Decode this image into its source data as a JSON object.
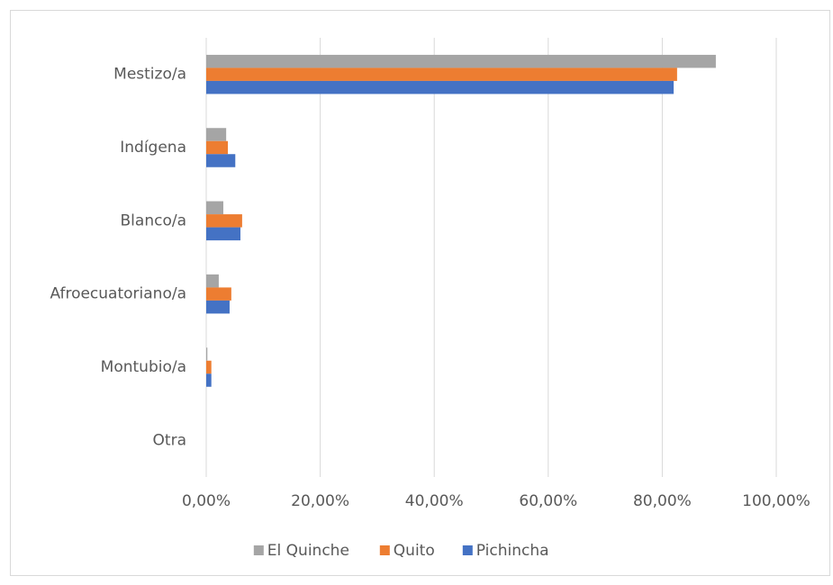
{
  "chart_data": {
    "type": "bar",
    "orientation": "horizontal",
    "categories": [
      "Mestizo/a",
      "Indígena",
      "Blanco/a",
      "Afroecuatoriano/a",
      "Montubio/a",
      "Otra"
    ],
    "series": [
      {
        "name": "El Quinche",
        "color": "#a5a5a5",
        "values": [
          89.4,
          3.5,
          3.0,
          2.2,
          0.2,
          0
        ]
      },
      {
        "name": "Quito",
        "color": "#ed7d31",
        "values": [
          82.6,
          3.8,
          6.3,
          4.4,
          0.9,
          0
        ]
      },
      {
        "name": "Pichincha",
        "color": "#4472c4",
        "values": [
          82.0,
          5.1,
          6.0,
          4.1,
          0.9,
          0
        ]
      }
    ],
    "xlim": [
      0,
      100
    ],
    "xticks": [
      {
        "value": 0,
        "label": "0,00%"
      },
      {
        "value": 20,
        "label": "20,00%"
      },
      {
        "value": 40,
        "label": "40,00%"
      },
      {
        "value": 60,
        "label": "60,00%"
      },
      {
        "value": 80,
        "label": "80,00%"
      },
      {
        "value": 100,
        "label": "100,00%"
      }
    ],
    "grid": true,
    "legend": "bottom"
  }
}
